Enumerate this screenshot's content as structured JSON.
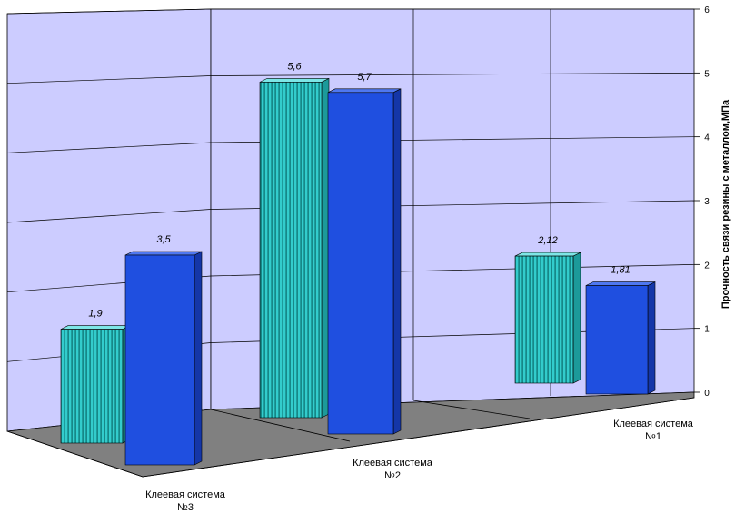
{
  "chart_data": {
    "type": "bar",
    "categories": [
      [
        "Клеевая система",
        "№3"
      ],
      [
        "Клеевая система",
        "№2"
      ],
      [
        "Клеевая система",
        "№1"
      ]
    ],
    "series": [
      {
        "values": [
          1.9,
          5.6,
          2.12
        ],
        "labels": [
          "1,9",
          "5,6",
          "2,12"
        ],
        "color": "#33cccc"
      },
      {
        "values": [
          3.5,
          5.7,
          1.81
        ],
        "labels": [
          "3,5",
          "5,7",
          "1,81"
        ],
        "color": "#1f4fe0"
      }
    ],
    "ylabel": "Прочность связи резины с металлом,МПа",
    "ylim": [
      0,
      6
    ],
    "yticks": [
      "0",
      "1",
      "2",
      "3",
      "4",
      "5",
      "6"
    ],
    "wall_color": "#ccccff",
    "floor_color": "#808080",
    "grid": true,
    "legend": "none"
  }
}
